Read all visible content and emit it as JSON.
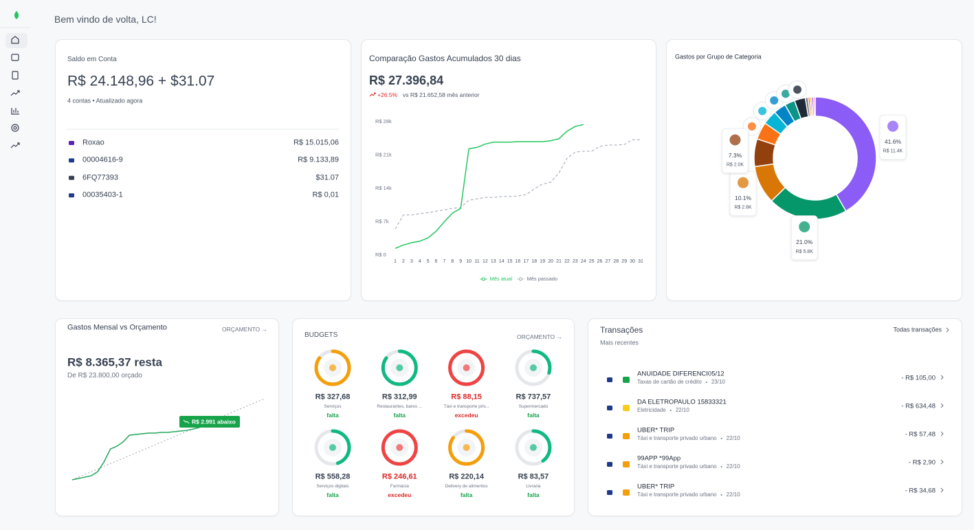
{
  "header": {
    "greeting": "Bem vindo de volta, LC!"
  },
  "balance": {
    "title": "Saldo em Conta",
    "amount": "R$ 24.148,96 + $31.07",
    "subtitle": "4 contas • Atualizado agora",
    "accounts": [
      {
        "name": "Roxao",
        "value": "R$ 15.015,06",
        "color": "#5b21b6"
      },
      {
        "name": "00004616-9",
        "value": "R$ 9.133,89",
        "color": "#1e3a8a"
      },
      {
        "name": "6FQ77393",
        "value": "$31.07",
        "color": "#374151"
      },
      {
        "name": "00035403-1",
        "value": "R$ 0,01",
        "color": "#1e3a8a"
      }
    ]
  },
  "comparison": {
    "title": "Comparação Gastos Acumulados 30 dias",
    "total": "R$ 27.396,84",
    "change": "+26.5%",
    "change_note": "vs R$ 21.652,58 mês anterior"
  },
  "budget_summary": {
    "title": "Gastos Mensal vs Orçamento",
    "link": "ORÇAMENTO →",
    "remaining": "R$ 8.365,37 resta",
    "budgeted": "De R$ 23.800,00 orçado"
  },
  "budgets": {
    "title": "BUDGETS",
    "link": "ORÇAMENTO →",
    "items": [
      {
        "amount": "R$ 327,68",
        "name": "Serviços",
        "status": "falta",
        "color": "#f59e0b",
        "text_color": "#16a34a",
        "progress": 85
      },
      {
        "amount": "R$ 312,99",
        "name": "Restaurantes, bares ...",
        "status": "falta",
        "color": "#10b981",
        "text_color": "#16a34a",
        "progress": 85
      },
      {
        "amount": "R$ 88,15",
        "name": "Táxi e transporte priv...",
        "status": "excedeu",
        "color": "#ef4444",
        "text_color": "#dc2626",
        "progress": 100
      },
      {
        "amount": "R$ 737,57",
        "name": "Supermercado",
        "status": "falta",
        "color": "#10b981",
        "text_color": "#16a34a",
        "progress": 30
      },
      {
        "amount": "R$ 558,28",
        "name": "Serviços digitais",
        "status": "falta",
        "color": "#10b981",
        "text_color": "#16a34a",
        "progress": 45
      },
      {
        "amount": "R$ 246,61",
        "name": "Farmácia",
        "status": "excedeu",
        "color": "#ef4444",
        "text_color": "#dc2626",
        "progress": 100
      },
      {
        "amount": "R$ 220,14",
        "name": "Delivery de alimentos",
        "status": "falta",
        "color": "#f59e0b",
        "text_color": "#16a34a",
        "progress": 85
      },
      {
        "amount": "R$ 83,57",
        "name": "Livraria",
        "status": "falta",
        "color": "#10b981",
        "text_color": "#16a34a",
        "progress": 40
      }
    ]
  },
  "transactions": {
    "title": "Transações",
    "link": "Todas transações",
    "subtitle": "Mais recentes",
    "items": [
      {
        "name": "ANUIDADE DIFERENCI05/12",
        "category": "Taxas de cartão de crédito",
        "date": "23/10",
        "amount": "- R$ 105,00",
        "color": "#16a34a"
      },
      {
        "name": "DA ELETROPAULO 15833321",
        "category": "Eletricidade",
        "date": "22/10",
        "amount": "- R$ 634,48",
        "color": "#facc15"
      },
      {
        "name": "UBER* TRIP",
        "category": "Táxi e transporte privado urbano",
        "date": "22/10",
        "amount": "- R$ 57,48",
        "color": "#f59e0b"
      },
      {
        "name": "99APP *99App",
        "category": "Táxi e transporte privado urbano",
        "date": "22/10",
        "amount": "- R$ 2,90",
        "color": "#f59e0b"
      },
      {
        "name": "UBER* TRIP",
        "category": "Táxi e transporte privado urbano",
        "date": "22/10",
        "amount": "- R$ 34,68",
        "color": "#f59e0b"
      }
    ]
  },
  "chart_data": [
    {
      "type": "line",
      "x": [
        1,
        2,
        3,
        4,
        5,
        6,
        7,
        8,
        9,
        10,
        11,
        12,
        13,
        14,
        15,
        16,
        17,
        18,
        19,
        20,
        21,
        22,
        23,
        24,
        25,
        26,
        27,
        28,
        29,
        30,
        31
      ],
      "series": [
        {
          "name": "Mês atual",
          "color": "#22c55e",
          "dashed": false,
          "values": [
            1400,
            2100,
            2600,
            2900,
            3600,
            5000,
            7000,
            8800,
            9800,
            22300,
            22600,
            23300,
            23700,
            23700,
            23700,
            23800,
            23800,
            23800,
            23800,
            24000,
            24400,
            26000,
            27000,
            27396.84,
            null,
            null,
            null,
            null,
            null,
            null,
            null
          ]
        },
        {
          "name": "Mês passado",
          "color": "#9ca3af",
          "dashed": true,
          "values": [
            5500,
            8400,
            8400,
            8700,
            8900,
            9200,
            9500,
            9800,
            10000,
            11500,
            11800,
            12100,
            12100,
            12300,
            12300,
            12400,
            12700,
            13900,
            14900,
            15300,
            17200,
            20300,
            21600,
            21800,
            21800,
            22800,
            23100,
            23100,
            23200,
            24200,
            24200
          ]
        }
      ],
      "ylim": [
        0,
        28000
      ],
      "yticks": [
        {
          "value": 0,
          "label": "R$ 0"
        },
        {
          "value": 7000,
          "label": "R$ 7k"
        },
        {
          "value": 14000,
          "label": "R$ 14k"
        },
        {
          "value": 21000,
          "label": "R$ 21k"
        },
        {
          "value": 28000,
          "label": "R$ 28k"
        }
      ],
      "grid": false,
      "legend": "bottom"
    },
    {
      "type": "donut",
      "title": "Gastos por Grupo de Categoria",
      "categories": [
        null,
        null,
        null,
        null,
        null,
        null,
        null,
        null,
        null,
        null,
        null,
        null,
        null,
        null
      ],
      "values": [
        41.6,
        21.0,
        10.1,
        7.3,
        4.6,
        3.8,
        3.3,
        2.7,
        2.9,
        0.7,
        0.5,
        0.5,
        0.5,
        0.4
      ],
      "value_labels": [
        "41.6%",
        "21.0%",
        "10.1%",
        "7.3%",
        null,
        null,
        null,
        null,
        null,
        null,
        null,
        null,
        null,
        null
      ],
      "amount_labels": [
        "R$ 11.4K",
        "R$ 5.8K",
        "R$ 2.8K",
        "R$ 2.0K",
        null,
        null,
        null,
        null,
        null,
        null,
        null,
        null,
        null,
        null
      ],
      "colors": [
        "#8b5cf6",
        "#059669",
        "#d97706",
        "#92400e",
        "#f97316",
        "#06b6d4",
        "#0284c7",
        "#0d9488",
        "#1f2937",
        "#6b7280",
        "#ea580c",
        "#f59e0b",
        "#a855f7",
        "#ec4899"
      ]
    },
    {
      "type": "line",
      "x": [
        1,
        2,
        3,
        4,
        5,
        6,
        7,
        8,
        9,
        10,
        11,
        12,
        13,
        14,
        15,
        16,
        17,
        18,
        19,
        20,
        21,
        22,
        23,
        24,
        25,
        26,
        27,
        28,
        29,
        30,
        31
      ],
      "series": [
        {
          "color": "#22a55b",
          "dashed": false,
          "values": [
            0,
            400,
            800,
            1200,
            2400,
            5300,
            9100,
            9900,
            11200,
            13200,
            13400,
            13600,
            13800,
            13800,
            14000,
            14000,
            14200,
            14400,
            14600,
            15000,
            15434.63,
            null,
            null,
            null,
            null,
            null,
            null,
            null,
            null,
            null,
            null
          ]
        }
      ],
      "target": {
        "x": [
          1,
          31
        ],
        "values": [
          0,
          23800
        ],
        "color": "#9ca3af"
      },
      "ylim": [
        0,
        27400
      ],
      "annotation": "R$ 2.991 abaixo",
      "annotation_color": "#16a34a"
    }
  ]
}
